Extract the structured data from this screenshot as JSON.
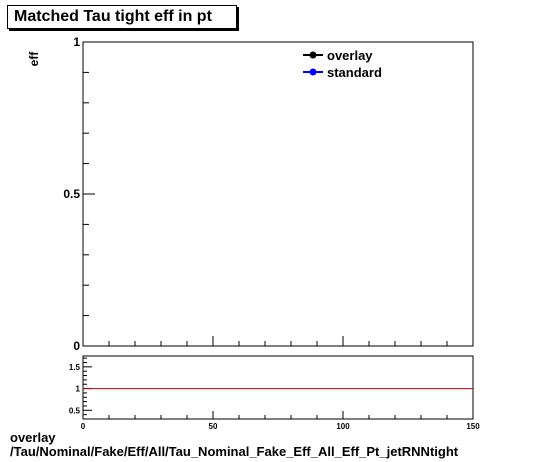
{
  "title": "Matched Tau tight eff in pt",
  "footer": {
    "line1": "overlay",
    "line2": "/Tau/Nominal/Fake/Eff/All/Tau_Nominal_Fake_Eff_All_Eff_Pt_jetRNNtight"
  },
  "chart_data": [
    {
      "type": "line",
      "title": "Matched Tau tight eff in pt",
      "xlabel": "",
      "ylabel": "eff",
      "xlim": [
        0,
        150
      ],
      "ylim": [
        0,
        1
      ],
      "y_ticks": [
        0,
        0.5,
        1
      ],
      "y_tick_labels": [
        "0",
        "0.5",
        "1"
      ],
      "legend_placement": "top-right",
      "series": [
        {
          "name": "overlay",
          "color": "#000000",
          "x": [],
          "y": []
        },
        {
          "name": "standard",
          "color": "#0000ff",
          "x": [],
          "y": []
        }
      ]
    },
    {
      "type": "line",
      "title": "",
      "xlabel": "",
      "ylabel": "",
      "xlim": [
        0,
        150
      ],
      "ylim": [
        0.3,
        1.75
      ],
      "x_ticks": [
        0,
        50,
        100,
        150
      ],
      "x_tick_labels": [
        "0",
        "50",
        "100",
        "150"
      ],
      "y_ticks": [
        0.5,
        1,
        1.5
      ],
      "y_tick_labels": [
        "0.5",
        "1",
        "1.5"
      ],
      "reference_line": {
        "y": 1,
        "color": "#cc0000"
      },
      "series": []
    }
  ]
}
